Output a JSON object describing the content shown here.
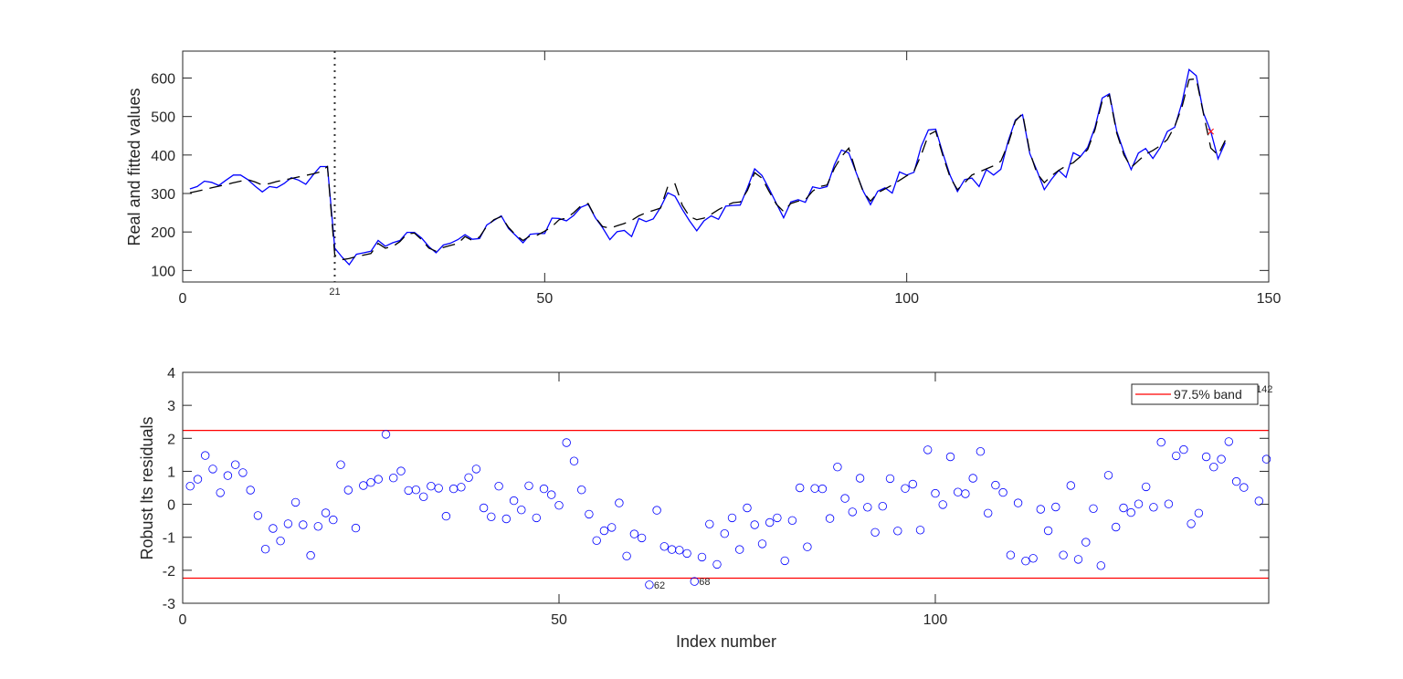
{
  "chart_data": [
    {
      "type": "line",
      "panel": "top",
      "title": "",
      "xlabel": "",
      "ylabel": "Real and fitted values",
      "xlim": [
        0,
        150
      ],
      "ylim": [
        70,
        670
      ],
      "xticks": [
        0,
        50,
        100,
        150
      ],
      "yticks": [
        100,
        200,
        300,
        400,
        500,
        600
      ],
      "grid": false,
      "vertical_marker": {
        "x": 21,
        "label": "21",
        "style": "dotted",
        "color": "#333333"
      },
      "outlier_marker": {
        "x": 142,
        "y": 461,
        "symbol": "x",
        "color": "#ff0000"
      },
      "x": [
        1,
        2,
        3,
        4,
        5,
        6,
        7,
        8,
        9,
        10,
        11,
        12,
        13,
        14,
        15,
        16,
        17,
        18,
        19,
        20,
        21,
        22,
        23,
        24,
        25,
        26,
        27,
        28,
        29,
        30,
        31,
        32,
        33,
        34,
        35,
        36,
        37,
        38,
        39,
        40,
        41,
        42,
        43,
        44,
        45,
        46,
        47,
        48,
        49,
        50,
        51,
        52,
        53,
        54,
        55,
        56,
        57,
        58,
        59,
        60,
        61,
        62,
        63,
        64,
        65,
        66,
        67,
        68,
        69,
        70,
        71,
        72,
        73,
        74,
        75,
        76,
        77,
        78,
        79,
        80,
        81,
        82,
        83,
        84,
        85,
        86,
        87,
        88,
        89,
        90,
        91,
        92,
        93,
        94,
        95,
        96,
        97,
        98,
        99,
        100,
        101,
        102,
        103,
        104,
        105,
        106,
        107,
        108,
        109,
        110,
        111,
        112,
        113,
        114,
        115,
        116,
        117,
        118,
        119,
        120,
        121,
        122,
        123,
        124,
        125,
        126,
        127,
        128,
        129,
        130,
        131,
        132,
        133,
        134,
        135,
        136,
        137,
        138,
        139,
        140,
        141,
        142,
        143,
        144
      ],
      "series": [
        {
          "name": "Real values",
          "color": "#0000ff",
          "style": "solid",
          "values": [
            312,
            318,
            332,
            329,
            321,
            335,
            348,
            348,
            336,
            319,
            304,
            318,
            315,
            326,
            341,
            335,
            324,
            348,
            370,
            370,
            158,
            135,
            115,
            142,
            146,
            150,
            178,
            163,
            172,
            178,
            199,
            199,
            184,
            162,
            146,
            166,
            171,
            180,
            193,
            181,
            183,
            218,
            230,
            242,
            209,
            191,
            172,
            194,
            196,
            196,
            236,
            235,
            229,
            243,
            264,
            272,
            237,
            211,
            180,
            201,
            204,
            188,
            235,
            227,
            234,
            264,
            302,
            293,
            259,
            229,
            203,
            229,
            242,
            233,
            267,
            269,
            270,
            315,
            364,
            347,
            312,
            274,
            237,
            278,
            284,
            277,
            317,
            313,
            318,
            374,
            413,
            405,
            355,
            306,
            271,
            306,
            315,
            301,
            356,
            348,
            355,
            422,
            465,
            467,
            404,
            347,
            305,
            336,
            340,
            318,
            362,
            348,
            363,
            435,
            491,
            505,
            404,
            359,
            310,
            337,
            360,
            342,
            406,
            396,
            420,
            472,
            548,
            559,
            463,
            407,
            362,
            405,
            417,
            391,
            419,
            461,
            472,
            535,
            622,
            606,
            508,
            461,
            390,
            432
          ]
        },
        {
          "name": "Fitted values",
          "color": "#000000",
          "style": "dashed",
          "values": [
            302,
            306,
            310,
            315,
            319,
            323,
            328,
            332,
            336,
            330,
            322,
            326,
            331,
            335,
            339,
            343,
            347,
            351,
            356,
            370,
            140,
            128,
            131,
            136,
            140,
            144,
            170,
            158,
            162,
            175,
            195,
            197,
            180,
            158,
            150,
            160,
            165,
            170,
            188,
            178,
            187,
            215,
            232,
            240,
            212,
            192,
            178,
            190,
            192,
            202,
            214,
            232,
            236,
            250,
            268,
            274,
            238,
            214,
            210,
            216,
            222,
            230,
            242,
            250,
            256,
            262,
            318,
            325,
            270,
            240,
            232,
            236,
            246,
            258,
            268,
            276,
            278,
            308,
            354,
            340,
            305,
            272,
            253,
            274,
            280,
            284,
            306,
            318,
            322,
            365,
            396,
            418,
            356,
            304,
            280,
            302,
            312,
            322,
            334,
            346,
            358,
            400,
            452,
            462,
            398,
            342,
            310,
            328,
            348,
            356,
            364,
            372,
            384,
            428,
            488,
            508,
            408,
            352,
            328,
            346,
            360,
            372,
            380,
            396,
            414,
            466,
            540,
            556,
            458,
            400,
            368,
            385,
            402,
            412,
            424,
            440,
            474,
            524,
            596,
            598,
            506,
            418,
            400,
            438
          ]
        }
      ]
    },
    {
      "type": "scatter",
      "panel": "bottom",
      "title": "",
      "xlabel": "Index number",
      "ylabel": "Robust lts residuals",
      "xlim": [
        0,
        144.3
      ],
      "ylim": [
        -3,
        4
      ],
      "xticks": [
        0,
        50,
        100
      ],
      "yticks": [
        -3,
        -2,
        -1,
        0,
        1,
        2,
        3,
        4
      ],
      "grid": false,
      "marker": {
        "symbol": "circle-open",
        "color": "#0000ff"
      },
      "bands": [
        {
          "y": 2.24,
          "color": "#ff0000"
        },
        {
          "y": -2.24,
          "color": "#ff0000"
        }
      ],
      "legend": {
        "position": "upper-right",
        "entries": [
          {
            "label": "97.5% band",
            "color": "#ff0000",
            "style": "line"
          }
        ]
      },
      "point_labels": [
        {
          "x": 62,
          "label": "62"
        },
        {
          "x": 68,
          "label": "68"
        },
        {
          "x": 142,
          "label": "142"
        }
      ],
      "x": [
        1,
        2,
        3,
        4,
        5,
        6,
        7,
        8,
        9,
        10,
        11,
        12,
        13,
        14,
        15,
        16,
        17,
        18,
        19,
        20,
        21,
        22,
        23,
        24,
        25,
        26,
        27,
        28,
        29,
        30,
        31,
        32,
        33,
        34,
        35,
        36,
        37,
        38,
        39,
        40,
        41,
        42,
        43,
        44,
        45,
        46,
        47,
        48,
        49,
        50,
        51,
        52,
        53,
        54,
        55,
        56,
        57,
        58,
        59,
        60,
        61,
        62,
        63,
        64,
        65,
        66,
        67,
        68,
        69,
        70,
        71,
        72,
        73,
        74,
        75,
        76,
        77,
        78,
        79,
        80,
        81,
        82,
        83,
        84,
        85,
        86,
        87,
        88,
        89,
        90,
        91,
        92,
        93,
        94,
        95,
        96,
        97,
        98,
        99,
        100,
        101,
        102,
        103,
        104,
        105,
        106,
        107,
        108,
        109,
        110,
        111,
        112,
        113,
        114,
        115,
        116,
        117,
        118,
        119,
        120,
        121,
        122,
        123,
        124,
        125,
        126,
        127,
        128,
        129,
        130,
        131,
        132,
        133,
        134,
        135,
        136,
        137,
        138,
        139,
        140,
        141,
        142,
        143,
        144
      ],
      "values": [
        0.55,
        0.76,
        1.48,
        1.07,
        0.35,
        0.87,
        1.2,
        0.96,
        0.43,
        -0.34,
        -1.36,
        -0.73,
        -1.11,
        -0.59,
        0.06,
        -0.62,
        -1.55,
        -0.67,
        -0.26,
        -0.47,
        1.2,
        0.43,
        -0.72,
        0.57,
        0.66,
        0.76,
        2.12,
        0.8,
        1.01,
        0.42,
        0.44,
        0.23,
        0.55,
        0.49,
        -0.36,
        0.47,
        0.52,
        0.81,
        1.07,
        -0.11,
        -0.38,
        0.55,
        -0.44,
        0.11,
        -0.17,
        0.56,
        -0.41,
        0.47,
        0.29,
        -0.03,
        1.87,
        1.31,
        0.44,
        -0.3,
        -1.1,
        -0.8,
        -0.7,
        0.04,
        -1.57,
        -0.9,
        -1.02,
        -2.44,
        -0.18,
        -1.28,
        -1.37,
        -1.39,
        -1.49,
        -2.34,
        -1.6,
        -0.6,
        -1.82,
        -0.89,
        -0.41,
        -1.37,
        -0.11,
        -0.62,
        -1.2,
        -0.55,
        -0.41,
        -1.71,
        -0.49,
        0.5,
        -1.29,
        0.48,
        0.47,
        -0.43,
        1.13,
        0.18,
        -0.23,
        0.79,
        -0.09,
        -0.85,
        -0.06,
        0.78,
        -0.81,
        0.48,
        0.61,
        -0.78,
        1.65,
        0.33,
        -0.01,
        1.44,
        0.37,
        0.32,
        0.79,
        1.6,
        -0.27,
        0.58,
        0.36,
        -1.54,
        0.04,
        -1.72,
        -1.64,
        -0.15,
        -0.8,
        -0.08,
        -1.54,
        0.57,
        -1.67,
        -1.15,
        -0.13,
        -1.86,
        0.88,
        -0.69,
        -0.11,
        -0.25,
        0.01,
        0.53,
        -0.09,
        1.88,
        0.01,
        1.47,
        1.66,
        -0.59,
        -0.27,
        1.44,
        1.13,
        1.37,
        1.9,
        0.69,
        0.51,
        3.5,
        0.1,
        1.37
      ]
    }
  ]
}
